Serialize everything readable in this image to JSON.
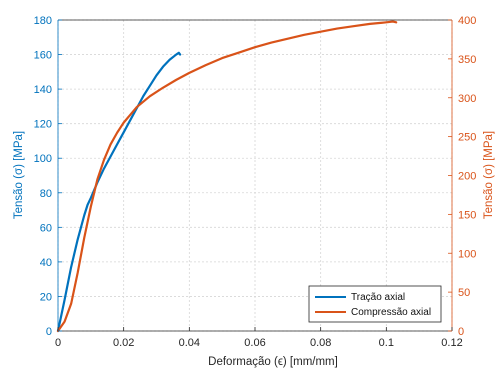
{
  "chart_data": {
    "type": "line",
    "xlabel": "Deformação (ϵ) [mm/mm]",
    "ylabel_left": "Tensão (σ) [MPa]",
    "ylabel_right": "Tensão (σ) [MPa]",
    "xlim": [
      0,
      0.12
    ],
    "xticks": [
      0,
      0.02,
      0.04,
      0.06,
      0.08,
      0.1,
      0.12
    ],
    "xtick_labels": [
      "0",
      "0.02",
      "0.04",
      "0.06",
      "0.08",
      "0.1",
      "0.12"
    ],
    "ylim_left": [
      0,
      180
    ],
    "yticks_left": [
      0,
      20,
      40,
      60,
      80,
      100,
      120,
      140,
      160,
      180
    ],
    "ylim_right": [
      0,
      400
    ],
    "yticks_right": [
      0,
      50,
      100,
      150,
      200,
      250,
      300,
      350,
      400
    ],
    "grid": true,
    "legend_position": "bottom-right",
    "left_axis_color": "#0072BD",
    "right_axis_color": "#D95319",
    "series": [
      {
        "name": "Tração axial",
        "axis": "left",
        "color": "#0072BD",
        "x": [
          0,
          0.002,
          0.004,
          0.006,
          0.008,
          0.009,
          0.01,
          0.012,
          0.014,
          0.016,
          0.018,
          0.02,
          0.022,
          0.024,
          0.026,
          0.028,
          0.03,
          0.032,
          0.034,
          0.036,
          0.0368,
          0.0372
        ],
        "y": [
          0,
          18,
          37,
          53,
          67,
          73,
          77,
          86,
          94,
          101,
          108,
          115,
          122,
          129,
          136,
          142,
          148,
          153,
          157,
          160,
          161,
          160
        ]
      },
      {
        "name": "Compressão axial",
        "axis": "right",
        "color": "#D95319",
        "x": [
          0,
          0.002,
          0.004,
          0.006,
          0.008,
          0.01,
          0.012,
          0.014,
          0.016,
          0.018,
          0.02,
          0.024,
          0.028,
          0.032,
          0.036,
          0.04,
          0.045,
          0.05,
          0.055,
          0.06,
          0.065,
          0.07,
          0.075,
          0.08,
          0.085,
          0.09,
          0.095,
          0.1,
          0.102,
          0.103
        ],
        "y": [
          0,
          12,
          35,
          75,
          120,
          160,
          195,
          220,
          240,
          255,
          268,
          288,
          302,
          313,
          323,
          332,
          342,
          351,
          358,
          365,
          371,
          376,
          381,
          385,
          389,
          392,
          395,
          397,
          398,
          397
        ]
      }
    ]
  }
}
